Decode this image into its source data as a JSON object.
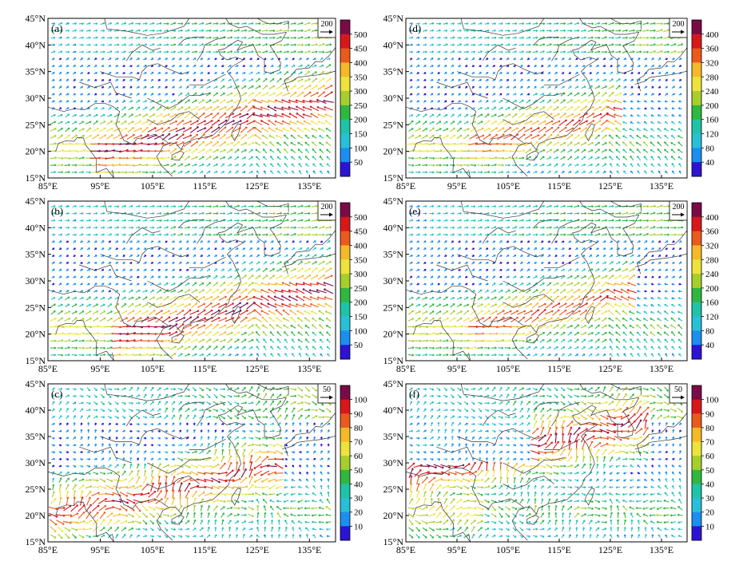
{
  "figure": {
    "lat_ticks": [
      "45°N",
      "40°N",
      "35°N",
      "30°N",
      "25°N",
      "20°N",
      "15°N"
    ],
    "lon_ticks": [
      "85°E",
      "95°E",
      "105°E",
      "115°E",
      "125°E",
      "135°E"
    ],
    "panels": [
      {
        "label": "(a)",
        "ref_value": "200",
        "colorbar": [
          "500",
          "450",
          "400",
          "350",
          "300",
          "250",
          "200",
          "150",
          "100",
          "50"
        ],
        "band": {
          "lat": [
            17,
            25
          ],
          "lon": [
            100,
            140
          ],
          "max": 0.95
        }
      },
      {
        "label": "(b)",
        "ref_value": "200",
        "colorbar": [
          "500",
          "450",
          "400",
          "350",
          "300",
          "250",
          "200",
          "150",
          "100",
          "50"
        ],
        "band": {
          "lat": [
            18,
            24
          ],
          "lon": [
            104,
            140
          ],
          "max": 0.95
        }
      },
      {
        "label": "(c)",
        "ref_value": "50",
        "colorbar": [
          "100",
          "90",
          "80",
          "70",
          "60",
          "50",
          "40",
          "30",
          "20",
          "10"
        ],
        "band": {
          "lat": [
            17,
            25
          ],
          "lon": [
            90,
            128
          ],
          "max": 0.9
        }
      },
      {
        "label": "(d)",
        "ref_value": "200",
        "colorbar": [
          "400",
          "360",
          "320",
          "280",
          "240",
          "200",
          "160",
          "120",
          "80",
          "40"
        ],
        "band": {
          "lat": [
            19,
            26
          ],
          "lon": [
            104,
            125
          ],
          "max": 0.85
        }
      },
      {
        "label": "(e)",
        "ref_value": "200",
        "colorbar": [
          "400",
          "360",
          "320",
          "280",
          "240",
          "200",
          "160",
          "120",
          "80",
          "40"
        ],
        "band": {
          "lat": [
            19,
            26
          ],
          "lon": [
            104,
            128
          ],
          "max": 0.85
        }
      },
      {
        "label": "(f)",
        "ref_value": "50",
        "colorbar": [
          "100",
          "90",
          "80",
          "70",
          "60",
          "50",
          "40",
          "30",
          "20",
          "10"
        ],
        "band": {
          "lat": [
            25,
            32
          ],
          "lon": [
            88,
            130
          ],
          "max": 0.95
        }
      }
    ],
    "colorbar_colors": [
      "#2b14d6",
      "#1a8ff0",
      "#28c0d8",
      "#1fc3a8",
      "#2fb840",
      "#a6cf2c",
      "#ede33a",
      "#f4b928",
      "#ea5a1c",
      "#d9171b",
      "#7a0b47"
    ]
  }
}
